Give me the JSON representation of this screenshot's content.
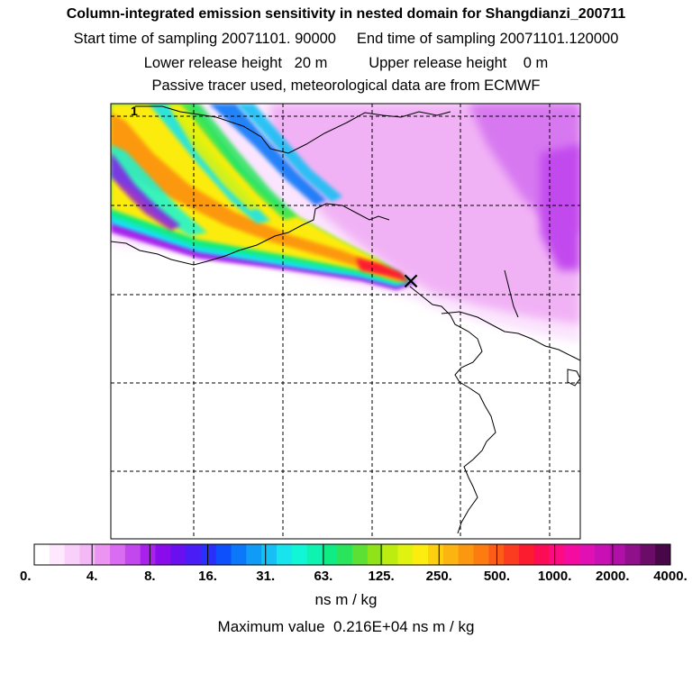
{
  "header": {
    "title": "Column-integrated emission sensitivity in nested domain for Shangdianzi_200711",
    "line2": "Start time of sampling 20071101. 90000     End time of sampling 20071101.120000",
    "line3": "Lower release height   20 m          Upper release height    0 m",
    "line4": "Passive tracer used, meteorological data are from ECMWF"
  },
  "map": {
    "corner_label": "1",
    "receptor_marker": "×"
  },
  "colorbar": {
    "tick_labels": [
      "0.",
      "4.",
      "8.",
      "16.",
      "31.",
      "63.",
      "125.",
      "250.",
      "500.",
      "1000.",
      "2000.",
      "4000."
    ],
    "colors": [
      "#ffffff",
      "#fde8fd",
      "#f9d0fa",
      "#f4b8f6",
      "#ec94f2",
      "#d96cf0",
      "#c248ee",
      "#a822ec",
      "#8a0cec",
      "#6a10f0",
      "#4a1cf6",
      "#2a30fa",
      "#0e50fc",
      "#0a78f8",
      "#109cf6",
      "#16c0f4",
      "#18e4ee",
      "#12f6d8",
      "#0ef4b0",
      "#10ec84",
      "#2ae45c",
      "#5ce034",
      "#8ee418",
      "#bcec10",
      "#e0f210",
      "#fcec10",
      "#fcd010",
      "#fcb410",
      "#fc9810",
      "#fc7c10",
      "#fc5c18",
      "#fc3c20",
      "#fc1c30",
      "#fc0c54",
      "#fc0c80",
      "#f40ca0",
      "#e010b4",
      "#c810b4",
      "#b010a8",
      "#90108c",
      "#6c0c68",
      "#480848"
    ]
  },
  "chart_data": {
    "type": "heatmap",
    "title": "Column-integrated emission sensitivity in nested domain for Shangdianzi_200711",
    "units": "ns m / kg",
    "color_scale_breaks": [
      0,
      4,
      8,
      16,
      31,
      63,
      125,
      250,
      500,
      1000,
      2000,
      4000
    ],
    "maximum_value": 2160,
    "maximum_value_label": "0.216E+04",
    "plume_direction": "north-west of receptor",
    "receptor": "Shangdianzi"
  },
  "footer": {
    "units_label": "ns m / kg",
    "maximum_label": "Maximum value  0.216E+04 ns m / kg"
  }
}
